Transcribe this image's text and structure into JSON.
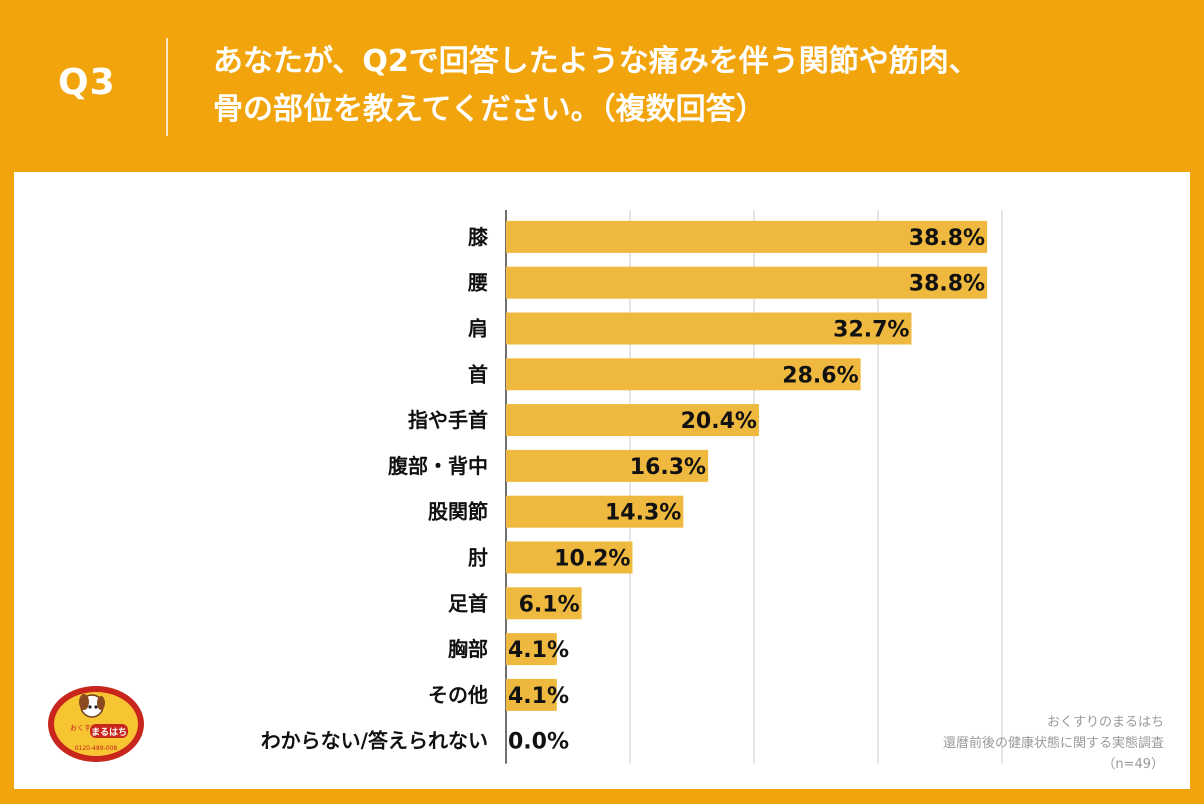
{
  "header": {
    "q_label": "Q3",
    "question_line1": "あなたが、Q2で回答したような痛みを伴う関節や筋肉、",
    "question_line2": "骨の部位を教えてください。（複数回答）"
  },
  "chart_data": {
    "type": "bar",
    "orientation": "horizontal",
    "categories": [
      "膝",
      "腰",
      "肩",
      "首",
      "指や手首",
      "腹部・背中",
      "股関節",
      "肘",
      "足首",
      "胸部",
      "その他",
      "わからない/答えられない"
    ],
    "values": [
      38.8,
      38.8,
      32.7,
      28.6,
      20.4,
      16.3,
      14.3,
      10.2,
      6.1,
      4.1,
      4.1,
      0.0
    ],
    "data_labels": [
      "38.8%",
      "38.8%",
      "32.7%",
      "28.6%",
      "20.4%",
      "16.3%",
      "14.3%",
      "10.2%",
      "6.1%",
      "4.1%",
      "4.1%",
      "0.0%"
    ],
    "xlim": [
      0,
      40
    ],
    "gridlines": [
      0,
      10,
      20,
      30,
      40
    ],
    "bar_color": "#efb93f",
    "grid_color": "#cccccc"
  },
  "source": {
    "line1": "おくすりのまるはち",
    "line2": "還暦前後の健康状態に関する実態調査",
    "line3": "（n=49）"
  },
  "logo": {
    "top_text": "おくすりの",
    "main_text": "まるはち",
    "phone": "0120-489-008"
  },
  "colors": {
    "accent": "#f2a40c",
    "panel": "#ffffff",
    "text": "#111111",
    "logo_red": "#c8261c",
    "logo_yellow": "#f6c531"
  }
}
